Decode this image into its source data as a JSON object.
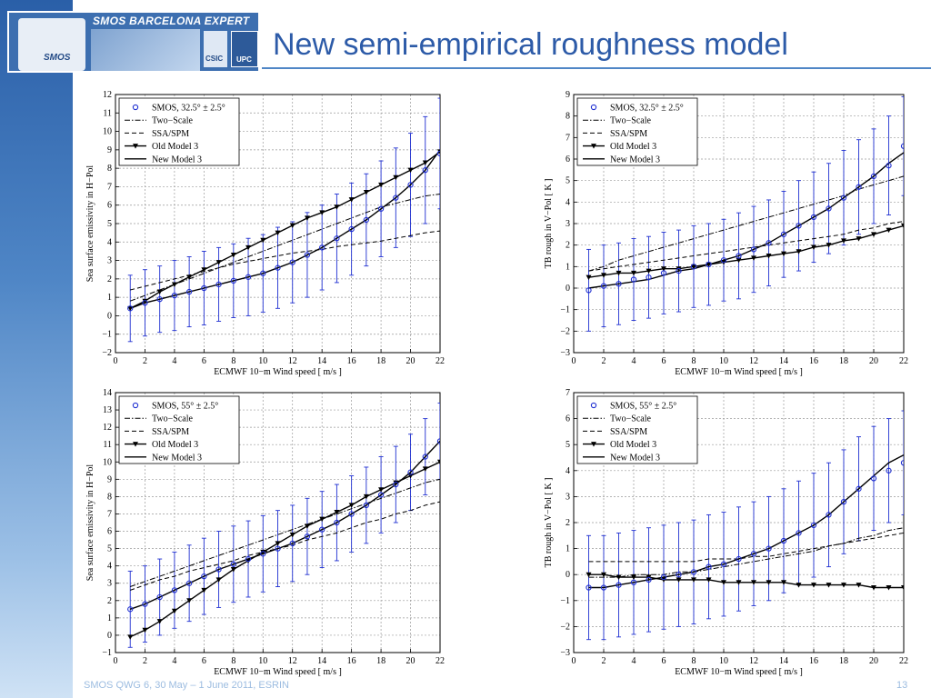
{
  "header": {
    "logo_title": "SMOS BARCELONA EXPERT CENTRE",
    "logo_smos": "SMOS",
    "logo_csic": "CSIC",
    "logo_upc": "UPC",
    "title": "New semi-empirical roughness model"
  },
  "footer": {
    "text": "SMOS QWG 6, 30 May – 1 June 2011, ESRIN",
    "page": "13"
  },
  "colors": {
    "accent": "#2d5ba8",
    "smos": "#1f2fd1",
    "model": "#000000"
  },
  "chart_data": [
    {
      "type": "line",
      "xlabel": "ECMWF 10−m Wind speed [ m/s ]",
      "ylabel": "Sea surface emissivity in H−Pol",
      "xlim": [
        0,
        22
      ],
      "ylim": [
        -2,
        12
      ],
      "xticks": [
        0,
        2,
        4,
        6,
        8,
        10,
        12,
        14,
        16,
        18,
        20,
        22
      ],
      "yticks": [
        -2,
        -1,
        0,
        1,
        2,
        3,
        4,
        5,
        6,
        7,
        8,
        9,
        10,
        11,
        12
      ],
      "grid": true,
      "legend_position": "top-left",
      "legend": [
        "SMOS, 32.5° ± 2.5°",
        "Two−Scale",
        "SSA/SPM",
        "Old Model 3",
        "New Model 3"
      ],
      "x": [
        1,
        2,
        3,
        4,
        5,
        6,
        7,
        8,
        9,
        10,
        11,
        12,
        13,
        14,
        15,
        16,
        17,
        18,
        19,
        20,
        21,
        22
      ],
      "smos": [
        0.4,
        0.7,
        0.9,
        1.1,
        1.3,
        1.5,
        1.7,
        1.9,
        2.1,
        2.3,
        2.6,
        2.9,
        3.3,
        3.7,
        4.2,
        4.7,
        5.2,
        5.8,
        6.4,
        7.1,
        7.9,
        8.8
      ],
      "smos_err": [
        1.8,
        1.8,
        1.8,
        1.9,
        1.9,
        2.0,
        2.0,
        2.0,
        2.1,
        2.1,
        2.2,
        2.2,
        2.3,
        2.3,
        2.4,
        2.5,
        2.5,
        2.6,
        2.7,
        2.8,
        2.9,
        3.0
      ],
      "two_scale": [
        0.8,
        1.1,
        1.4,
        1.7,
        2.0,
        2.3,
        2.6,
        2.9,
        3.2,
        3.5,
        3.8,
        4.1,
        4.4,
        4.7,
        5.0,
        5.3,
        5.6,
        5.9,
        6.1,
        6.3,
        6.5,
        6.6
      ],
      "ssa_spm": [
        1.4,
        1.6,
        1.8,
        2.0,
        2.2,
        2.4,
        2.6,
        2.8,
        2.95,
        3.1,
        3.25,
        3.4,
        3.5,
        3.6,
        3.75,
        3.85,
        3.95,
        4.05,
        4.2,
        4.35,
        4.5,
        4.6
      ],
      "old_model": [
        0.4,
        0.8,
        1.3,
        1.7,
        2.1,
        2.5,
        2.9,
        3.3,
        3.7,
        4.1,
        4.5,
        4.9,
        5.3,
        5.6,
        5.9,
        6.3,
        6.7,
        7.1,
        7.5,
        7.9,
        8.3,
        8.9
      ],
      "new_model": [
        0.4,
        0.7,
        0.9,
        1.1,
        1.3,
        1.5,
        1.7,
        1.9,
        2.1,
        2.3,
        2.6,
        2.9,
        3.3,
        3.7,
        4.2,
        4.7,
        5.2,
        5.8,
        6.4,
        7.1,
        7.9,
        9.0
      ]
    },
    {
      "type": "line",
      "xlabel": "ECMWF 10−m Wind speed [ m/s ]",
      "ylabel": "TB rough in V−Pol [ K ]",
      "xlim": [
        0,
        22
      ],
      "ylim": [
        -3,
        9
      ],
      "xticks": [
        0,
        2,
        4,
        6,
        8,
        10,
        12,
        14,
        16,
        18,
        20,
        22
      ],
      "yticks": [
        -3,
        -2,
        -1,
        0,
        1,
        2,
        3,
        4,
        5,
        6,
        7,
        8,
        9
      ],
      "grid": true,
      "legend_position": "top-left",
      "legend": [
        "SMOS, 32.5° ± 2.5°",
        "Two−Scale",
        "SSA/SPM",
        "Old Model 3",
        "New Model 3"
      ],
      "x": [
        1,
        2,
        3,
        4,
        5,
        6,
        7,
        8,
        9,
        10,
        11,
        12,
        13,
        14,
        15,
        16,
        17,
        18,
        19,
        20,
        21,
        22
      ],
      "smos": [
        -0.1,
        0.1,
        0.2,
        0.4,
        0.5,
        0.7,
        0.8,
        1.0,
        1.1,
        1.3,
        1.5,
        1.8,
        2.1,
        2.5,
        2.9,
        3.3,
        3.7,
        4.2,
        4.7,
        5.2,
        5.7,
        6.6
      ],
      "smos_err": [
        1.9,
        1.9,
        1.9,
        1.9,
        1.9,
        1.9,
        1.9,
        1.9,
        1.9,
        1.9,
        2.0,
        2.0,
        2.0,
        2.0,
        2.1,
        2.1,
        2.1,
        2.2,
        2.2,
        2.2,
        2.3,
        2.3
      ],
      "two_scale": [
        0.8,
        1.0,
        1.3,
        1.5,
        1.7,
        1.9,
        2.1,
        2.3,
        2.5,
        2.7,
        2.9,
        3.1,
        3.3,
        3.5,
        3.7,
        3.9,
        4.1,
        4.3,
        4.6,
        4.8,
        5.0,
        5.2
      ],
      "ssa_spm": [
        0.8,
        0.9,
        1.0,
        1.1,
        1.2,
        1.3,
        1.4,
        1.5,
        1.6,
        1.7,
        1.8,
        1.9,
        2.0,
        2.1,
        2.2,
        2.3,
        2.4,
        2.5,
        2.7,
        2.8,
        3.0,
        3.1
      ],
      "old_model": [
        0.5,
        0.6,
        0.7,
        0.7,
        0.8,
        0.9,
        0.9,
        1.0,
        1.1,
        1.2,
        1.3,
        1.4,
        1.5,
        1.6,
        1.7,
        1.9,
        2.0,
        2.2,
        2.3,
        2.5,
        2.7,
        2.9
      ],
      "new_model": [
        0.0,
        0.1,
        0.2,
        0.3,
        0.4,
        0.6,
        0.8,
        0.9,
        1.1,
        1.3,
        1.5,
        1.8,
        2.1,
        2.5,
        2.9,
        3.3,
        3.7,
        4.2,
        4.7,
        5.2,
        5.8,
        6.3
      ]
    },
    {
      "type": "line",
      "xlabel": "ECMWF 10−m Wind speed [ m/s ]",
      "ylabel": "Sea surface emissivity in H−Pol",
      "xlim": [
        0,
        22
      ],
      "ylim": [
        -1,
        14
      ],
      "xticks": [
        0,
        2,
        4,
        6,
        8,
        10,
        12,
        14,
        16,
        18,
        20,
        22
      ],
      "yticks": [
        -1,
        0,
        1,
        2,
        3,
        4,
        5,
        6,
        7,
        8,
        9,
        10,
        11,
        12,
        13,
        14
      ],
      "grid": true,
      "legend_position": "top-left",
      "legend": [
        "SMOS, 55° ± 2.5°",
        "Two−Scale",
        "SSA/SPM",
        "Old Model 3",
        "New Model 3"
      ],
      "x": [
        1,
        2,
        3,
        4,
        5,
        6,
        7,
        8,
        9,
        10,
        11,
        12,
        13,
        14,
        15,
        16,
        17,
        18,
        19,
        20,
        21,
        22
      ],
      "smos": [
        1.5,
        1.8,
        2.2,
        2.6,
        3.0,
        3.4,
        3.8,
        4.1,
        4.4,
        4.7,
        5.0,
        5.3,
        5.7,
        6.1,
        6.5,
        7.0,
        7.5,
        8.1,
        8.7,
        9.4,
        10.3,
        11.2
      ],
      "smos_err": [
        2.2,
        2.2,
        2.2,
        2.2,
        2.2,
        2.2,
        2.2,
        2.2,
        2.2,
        2.2,
        2.2,
        2.2,
        2.2,
        2.2,
        2.2,
        2.2,
        2.2,
        2.2,
        2.2,
        2.2,
        2.2,
        2.2
      ],
      "two_scale": [
        2.8,
        3.1,
        3.4,
        3.7,
        4.0,
        4.3,
        4.6,
        4.9,
        5.2,
        5.5,
        5.8,
        6.1,
        6.4,
        6.7,
        7.0,
        7.3,
        7.6,
        7.9,
        8.2,
        8.5,
        8.8,
        9.0
      ],
      "ssa_spm": [
        2.6,
        2.9,
        3.2,
        3.4,
        3.7,
        3.9,
        4.1,
        4.3,
        4.6,
        4.8,
        5.0,
        5.2,
        5.5,
        5.7,
        5.9,
        6.2,
        6.5,
        6.7,
        7.0,
        7.2,
        7.5,
        7.7
      ],
      "old_model": [
        -0.1,
        0.3,
        0.8,
        1.4,
        2.0,
        2.6,
        3.2,
        3.8,
        4.3,
        4.8,
        5.3,
        5.8,
        6.3,
        6.7,
        7.1,
        7.5,
        8.0,
        8.4,
        8.8,
        9.2,
        9.6,
        10.0
      ],
      "new_model": [
        1.5,
        1.8,
        2.2,
        2.6,
        3.0,
        3.4,
        3.8,
        4.1,
        4.4,
        4.7,
        5.0,
        5.3,
        5.7,
        6.1,
        6.5,
        7.0,
        7.5,
        8.1,
        8.7,
        9.4,
        10.3,
        11.2
      ]
    },
    {
      "type": "line",
      "xlabel": "ECMWF 10−m Wind speed [ m/s ]",
      "ylabel": "TB rough in V−Pol [ K ]",
      "xlim": [
        0,
        22
      ],
      "ylim": [
        -3,
        7
      ],
      "xticks": [
        0,
        2,
        4,
        6,
        8,
        10,
        12,
        14,
        16,
        18,
        20,
        22
      ],
      "yticks": [
        -3,
        -2,
        -1,
        0,
        1,
        2,
        3,
        4,
        5,
        6,
        7
      ],
      "grid": true,
      "legend_position": "top-left",
      "legend": [
        "SMOS, 55° ± 2.5°",
        "Two−Scale",
        "SSA/SPM",
        "Old Model 3",
        "New Model 3"
      ],
      "x": [
        1,
        2,
        3,
        4,
        5,
        6,
        7,
        8,
        9,
        10,
        11,
        12,
        13,
        14,
        15,
        16,
        17,
        18,
        19,
        20,
        21,
        22
      ],
      "smos": [
        -0.5,
        -0.5,
        -0.4,
        -0.3,
        -0.2,
        -0.1,
        0.0,
        0.1,
        0.3,
        0.4,
        0.6,
        0.8,
        1.0,
        1.3,
        1.6,
        1.9,
        2.3,
        2.8,
        3.3,
        3.7,
        4.0,
        4.3
      ],
      "smos_err": [
        2.0,
        2.0,
        2.0,
        2.0,
        2.0,
        2.0,
        2.0,
        2.0,
        2.0,
        2.0,
        2.0,
        2.0,
        2.0,
        2.0,
        2.0,
        2.0,
        2.0,
        2.0,
        2.0,
        2.0,
        2.0,
        2.0
      ],
      "two_scale": [
        -0.1,
        -0.1,
        -0.1,
        0.0,
        0.0,
        0.0,
        0.1,
        0.1,
        0.2,
        0.3,
        0.4,
        0.5,
        0.6,
        0.7,
        0.8,
        0.9,
        1.1,
        1.2,
        1.4,
        1.5,
        1.7,
        1.8
      ],
      "ssa_spm": [
        0.5,
        0.5,
        0.5,
        0.5,
        0.5,
        0.5,
        0.5,
        0.5,
        0.6,
        0.6,
        0.6,
        0.7,
        0.7,
        0.8,
        0.9,
        1.0,
        1.1,
        1.2,
        1.3,
        1.4,
        1.5,
        1.6
      ],
      "old_model": [
        0.0,
        0.0,
        -0.1,
        -0.1,
        -0.1,
        -0.2,
        -0.2,
        -0.2,
        -0.2,
        -0.3,
        -0.3,
        -0.3,
        -0.3,
        -0.3,
        -0.4,
        -0.4,
        -0.4,
        -0.4,
        -0.4,
        -0.5,
        -0.5,
        -0.5
      ],
      "new_model": [
        -0.5,
        -0.5,
        -0.4,
        -0.3,
        -0.2,
        -0.1,
        0.0,
        0.1,
        0.3,
        0.4,
        0.6,
        0.8,
        1.0,
        1.3,
        1.6,
        1.9,
        2.3,
        2.8,
        3.3,
        3.8,
        4.3,
        4.6
      ]
    }
  ]
}
